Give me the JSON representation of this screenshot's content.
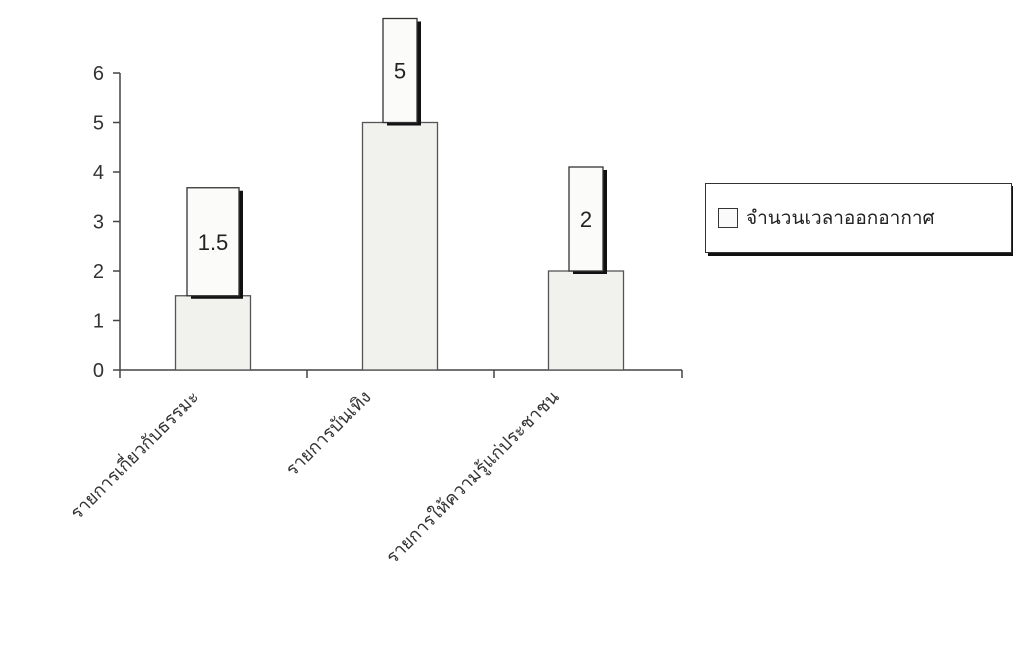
{
  "chart_data": {
    "type": "bar",
    "categories": [
      "รายการเกี่ยวกับธรรมะ",
      "รายการบันเทิง",
      "รายการให้ความรู้แก่ประชาชน"
    ],
    "series": [
      {
        "name": "จำนวนเวลาออกอากาศ",
        "values": [
          1.5,
          5,
          2
        ]
      }
    ],
    "data_labels": [
      "1.5",
      "5",
      "2"
    ],
    "yticks": [
      "0",
      "1",
      "2",
      "3",
      "4",
      "5",
      "6"
    ],
    "ylim": [
      0,
      6
    ],
    "title": "",
    "xlabel": "",
    "ylabel": "",
    "legend_position": "right",
    "grid": false,
    "colors": {
      "bar_fill": "#f1f1ee",
      "bar_stroke": "#555555",
      "shadow": "#111111"
    }
  }
}
